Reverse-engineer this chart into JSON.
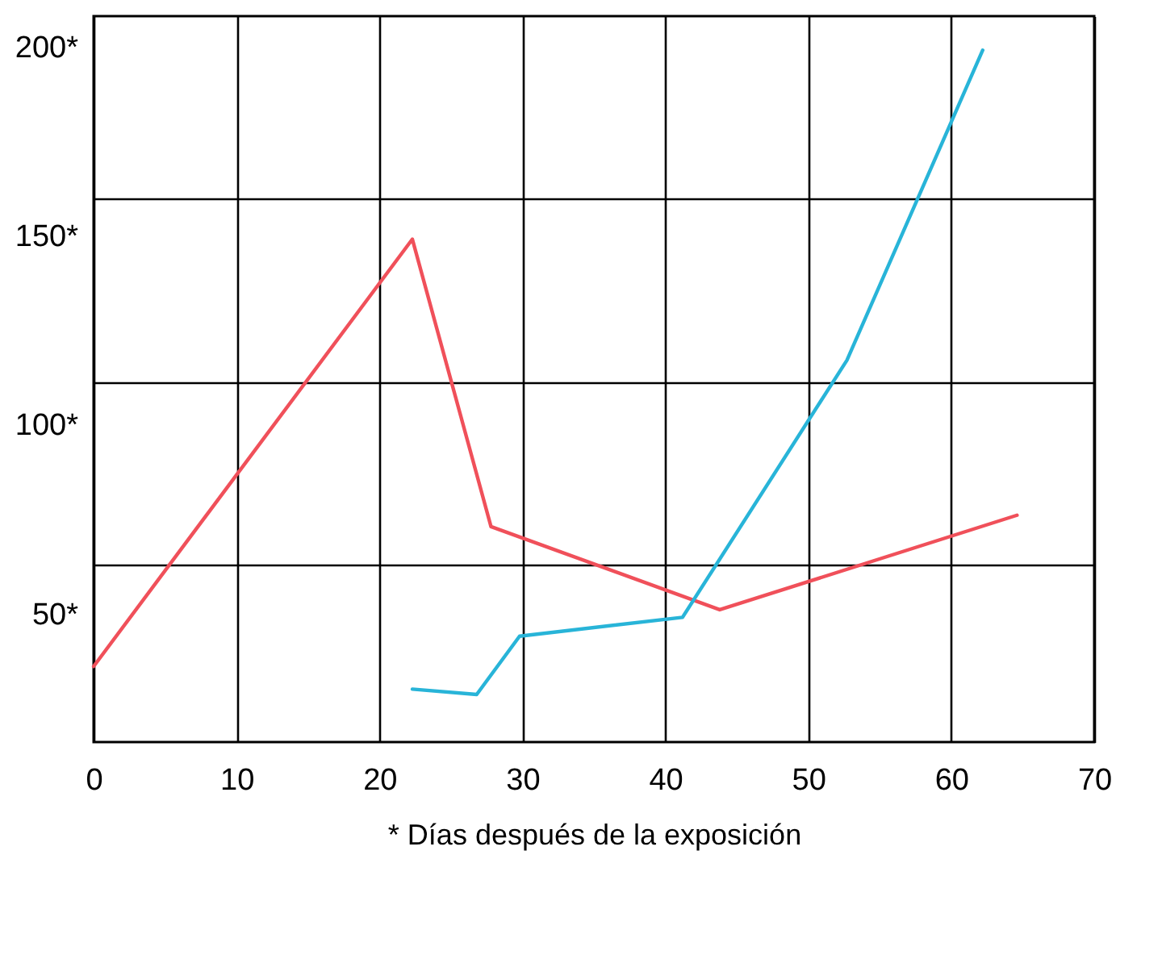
{
  "chart_data": {
    "type": "line",
    "xlabel": "* Días después de la exposición",
    "xlim": [
      0,
      70
    ],
    "xticks": [
      0,
      10,
      20,
      30,
      40,
      50,
      60,
      70
    ],
    "ylim": [
      16,
      208
    ],
    "yticks": [
      {
        "value": 50,
        "label": "50*"
      },
      {
        "value": 100,
        "label": "100*"
      },
      {
        "value": 150,
        "label": "150*"
      },
      {
        "value": 200,
        "label": "200*"
      },
      {
        "value": 63,
        "label": null
      },
      {
        "value": 111,
        "label": null
      },
      {
        "value": 160,
        "label": null
      }
    ],
    "grid": true,
    "marker": "none",
    "line_style": "solid",
    "series": [
      {
        "color": "#f0505a",
        "x": [
          0,
          22.3,
          27.8,
          43.8,
          64.6
        ],
        "values": [
          36,
          149,
          73,
          51,
          76
        ]
      },
      {
        "color": "#28b4d8",
        "x": [
          22.3,
          26.8,
          29.8,
          41.2,
          52.7,
          62.2
        ],
        "values": [
          30,
          28.6,
          44,
          49,
          117,
          199
        ]
      }
    ]
  }
}
